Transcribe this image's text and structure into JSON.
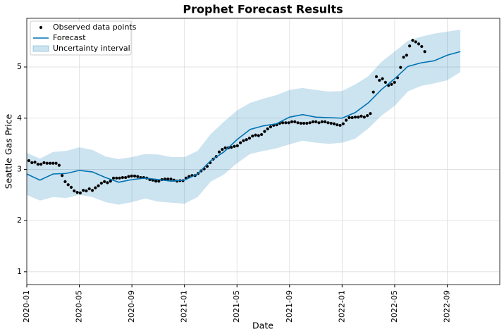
{
  "chart_data": {
    "type": "line",
    "title": "Prophet Forecast Results",
    "x_label": "Date",
    "y_label": "Seattle Gas Price",
    "xlim": [
      0,
      36
    ],
    "ylim": [
      0.75,
      5.95
    ],
    "xticks": [
      {
        "value": 0,
        "label": "2020-01"
      },
      {
        "value": 4,
        "label": "2020-05"
      },
      {
        "value": 8,
        "label": "2020-09"
      },
      {
        "value": 12,
        "label": "2021-01"
      },
      {
        "value": 16,
        "label": "2021-05"
      },
      {
        "value": 20,
        "label": "2021-09"
      },
      {
        "value": 24,
        "label": "2022-01"
      },
      {
        "value": 28,
        "label": "2022-05"
      },
      {
        "value": 32,
        "label": "2022-09"
      }
    ],
    "yticks": [
      1,
      2,
      3,
      4,
      5
    ],
    "grid": true,
    "legend": "upper left",
    "band": {
      "name": "Uncertainty interval",
      "color": "#0072b2",
      "x": [
        0,
        1,
        2,
        3,
        4,
        5,
        6,
        7,
        8,
        9,
        10,
        11,
        12,
        13,
        14,
        15,
        16,
        17,
        18,
        19,
        20,
        21,
        22,
        23,
        24,
        25,
        26,
        27,
        28,
        29,
        30,
        31,
        32,
        33
      ],
      "lower": [
        2.5,
        2.39,
        2.46,
        2.44,
        2.5,
        2.46,
        2.36,
        2.31,
        2.36,
        2.43,
        2.37,
        2.35,
        2.33,
        2.46,
        2.76,
        2.9,
        3.12,
        3.3,
        3.36,
        3.41,
        3.49,
        3.56,
        3.52,
        3.5,
        3.52,
        3.6,
        3.8,
        4.05,
        4.24,
        4.52,
        4.63,
        4.68,
        4.74,
        4.9
      ],
      "upper": [
        3.32,
        3.21,
        3.34,
        3.36,
        3.43,
        3.38,
        3.25,
        3.2,
        3.24,
        3.3,
        3.29,
        3.24,
        3.24,
        3.36,
        3.69,
        3.93,
        4.15,
        4.3,
        4.38,
        4.45,
        4.55,
        4.59,
        4.55,
        4.52,
        4.53,
        4.66,
        4.82,
        5.1,
        5.3,
        5.51,
        5.59,
        5.65,
        5.69,
        5.73
      ]
    },
    "series": [
      {
        "name": "Observed data points",
        "style": "points",
        "color": "#000000",
        "x": [
          0.16,
          0.39,
          0.62,
          0.85,
          1.08,
          1.31,
          1.54,
          1.77,
          2,
          2.23,
          2.46,
          2.69,
          2.92,
          3.15,
          3.38,
          3.61,
          3.84,
          4.07,
          4.3,
          4.53,
          4.76,
          4.99,
          5.22,
          5.45,
          5.68,
          5.91,
          6.14,
          6.37,
          6.6,
          6.83,
          7.06,
          7.29,
          7.52,
          7.75,
          7.98,
          8.21,
          8.44,
          8.67,
          8.9,
          9.13,
          9.36,
          9.59,
          9.82,
          10.05,
          10.28,
          10.51,
          10.74,
          10.97,
          11.2,
          11.43,
          11.66,
          11.89,
          12.12,
          12.35,
          12.58,
          12.81,
          13.04,
          13.27,
          13.5,
          13.73,
          13.96,
          14.19,
          14.42,
          14.65,
          14.88,
          15.11,
          15.34,
          15.57,
          15.8,
          16.03,
          16.26,
          16.49,
          16.72,
          16.95,
          17.18,
          17.41,
          17.64,
          17.87,
          18.1,
          18.33,
          18.56,
          18.79,
          19.02,
          19.25,
          19.48,
          19.71,
          19.94,
          20.17,
          20.4,
          20.63,
          20.86,
          21.09,
          21.32,
          21.55,
          21.78,
          22.01,
          22.24,
          22.47,
          22.7,
          22.93,
          23.16,
          23.39,
          23.62,
          23.85,
          24.08,
          24.31,
          24.54,
          24.77,
          25,
          25.23,
          25.46,
          25.69,
          25.92,
          26.15,
          26.38,
          26.61,
          26.84,
          27.07,
          27.3,
          27.53,
          27.76,
          27.99,
          28.22,
          28.45,
          28.68,
          28.91,
          29.14,
          29.37,
          29.6,
          29.83,
          30.06,
          30.29
        ],
        "values": [
          3.17,
          3.13,
          3.14,
          3.1,
          3.1,
          3.13,
          3.12,
          3.12,
          3.12,
          3.12,
          3.08,
          2.88,
          2.76,
          2.7,
          2.65,
          2.58,
          2.55,
          2.54,
          2.59,
          2.58,
          2.62,
          2.59,
          2.64,
          2.68,
          2.73,
          2.76,
          2.74,
          2.77,
          2.83,
          2.83,
          2.83,
          2.84,
          2.84,
          2.86,
          2.87,
          2.87,
          2.86,
          2.84,
          2.84,
          2.83,
          2.8,
          2.79,
          2.77,
          2.77,
          2.8,
          2.81,
          2.81,
          2.81,
          2.79,
          2.77,
          2.78,
          2.78,
          2.83,
          2.86,
          2.88,
          2.88,
          2.92,
          2.97,
          3.01,
          3.06,
          3.13,
          3.2,
          3.25,
          3.34,
          3.39,
          3.42,
          3.42,
          3.43,
          3.45,
          3.46,
          3.52,
          3.56,
          3.58,
          3.61,
          3.65,
          3.67,
          3.66,
          3.68,
          3.74,
          3.79,
          3.83,
          3.86,
          3.87,
          3.9,
          3.91,
          3.91,
          3.91,
          3.93,
          3.93,
          3.91,
          3.9,
          3.9,
          3.9,
          3.91,
          3.93,
          3.93,
          3.91,
          3.93,
          3.93,
          3.91,
          3.9,
          3.89,
          3.87,
          3.86,
          3.89,
          3.96,
          4.01,
          4.01,
          4.02,
          4.02,
          4.04,
          4.02,
          4.05,
          4.09,
          4.51,
          4.81,
          4.74,
          4.77,
          4.7,
          4.64,
          4.66,
          4.7,
          4.79,
          4.99,
          5.19,
          5.23,
          5.41,
          5.52,
          5.49,
          5.45,
          5.4,
          5.3
        ]
      },
      {
        "name": "Forecast",
        "style": "line",
        "color": "#0072b2",
        "x": [
          0,
          1,
          2,
          3,
          4,
          5,
          6,
          7,
          8,
          9,
          10,
          11,
          12,
          13,
          14,
          15,
          16,
          17,
          18,
          19,
          20,
          21,
          22,
          23,
          24,
          25,
          26,
          27,
          28,
          29,
          30,
          31,
          32,
          33
        ],
        "values": [
          2.91,
          2.79,
          2.91,
          2.92,
          2.98,
          2.95,
          2.84,
          2.75,
          2.8,
          2.83,
          2.8,
          2.77,
          2.79,
          2.91,
          3.17,
          3.34,
          3.58,
          3.78,
          3.85,
          3.89,
          4.02,
          4.07,
          4.02,
          4.01,
          4,
          4.11,
          4.3,
          4.56,
          4.77,
          5.01,
          5.08,
          5.12,
          5.23,
          5.3
        ]
      }
    ]
  }
}
